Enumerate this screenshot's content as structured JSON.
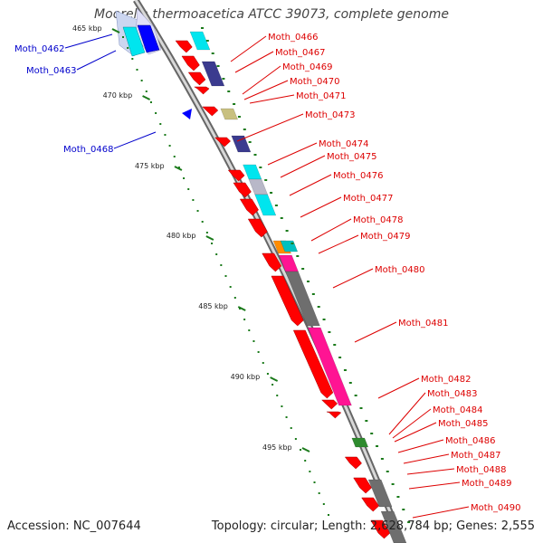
{
  "title": "Moorella thermoacetica ATCC 39073, complete genome",
  "footer": {
    "accession": "Accession: NC_007644",
    "summary": "Topology: circular; Length: 2,628,784 bp; Genes: 2,555"
  },
  "colors": {
    "forward_gene": "#ff0000",
    "reverse_gene": "#0000ff",
    "forward_label": "#dd0000",
    "reverse_label": "#0000cc",
    "backbone": "#999999",
    "tick": "#1a7a1a",
    "cog_cyan": "#00e5ee",
    "cog_navy": "#3b3b8f",
    "cog_khaki": "#c8c080",
    "cog_gray": "#6e6e6e",
    "cog_pink": "#ff1493",
    "cog_orange": "#ff8c00",
    "cog_teal": "#00c0c0",
    "cog_green": "#2e8b2e",
    "cog_lightgray": "#b8b8c8"
  },
  "scale": {
    "ticks": [
      {
        "pos": 465,
        "label": "465 kbp"
      },
      {
        "pos": 470,
        "label": "470 kbp"
      },
      {
        "pos": 475,
        "label": "475 kbp"
      },
      {
        "pos": 480,
        "label": "480 kbp"
      },
      {
        "pos": 485,
        "label": "485 kbp"
      },
      {
        "pos": 490,
        "label": "490 kbp"
      },
      {
        "pos": 495,
        "label": "495 kbp"
      }
    ]
  },
  "genes": [
    {
      "name": "Moth_0462",
      "strand": "reverse"
    },
    {
      "name": "Moth_0463",
      "strand": "reverse"
    },
    {
      "name": "Moth_0466",
      "strand": "forward"
    },
    {
      "name": "Moth_0467",
      "strand": "forward"
    },
    {
      "name": "Moth_0468",
      "strand": "reverse"
    },
    {
      "name": "Moth_0469",
      "strand": "forward"
    },
    {
      "name": "Moth_0470",
      "strand": "forward"
    },
    {
      "name": "Moth_0471",
      "strand": "forward"
    },
    {
      "name": "Moth_0473",
      "strand": "forward"
    },
    {
      "name": "Moth_0474",
      "strand": "forward"
    },
    {
      "name": "Moth_0475",
      "strand": "forward"
    },
    {
      "name": "Moth_0476",
      "strand": "forward"
    },
    {
      "name": "Moth_0477",
      "strand": "forward"
    },
    {
      "name": "Moth_0478",
      "strand": "forward"
    },
    {
      "name": "Moth_0479",
      "strand": "forward"
    },
    {
      "name": "Moth_0480",
      "strand": "forward"
    },
    {
      "name": "Moth_0481",
      "strand": "forward"
    },
    {
      "name": "Moth_0482",
      "strand": "forward"
    },
    {
      "name": "Moth_0483",
      "strand": "forward"
    },
    {
      "name": "Moth_0484",
      "strand": "forward"
    },
    {
      "name": "Moth_0485",
      "strand": "forward"
    },
    {
      "name": "Moth_0486",
      "strand": "forward"
    },
    {
      "name": "Moth_0487",
      "strand": "forward"
    },
    {
      "name": "Moth_0488",
      "strand": "forward"
    },
    {
      "name": "Moth_0489",
      "strand": "forward"
    },
    {
      "name": "Moth_0490",
      "strand": "forward"
    }
  ]
}
